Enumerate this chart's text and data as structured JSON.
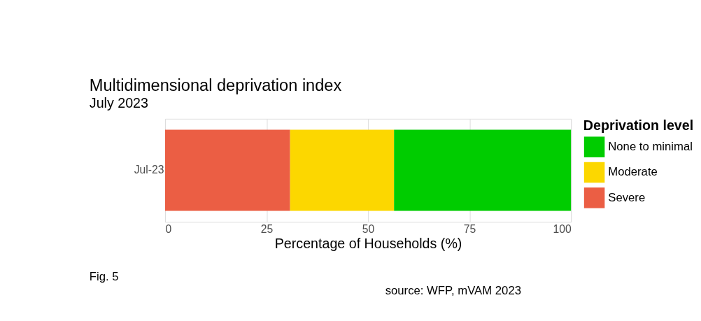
{
  "chart_data": {
    "type": "bar",
    "orientation": "horizontal",
    "stacked": true,
    "title": "Multidimensional deprivation index",
    "subtitle": "July 2023",
    "xlabel": "Percentage of Households (%)",
    "legend_title": "Deprivation level",
    "categories": [
      "Jul-23"
    ],
    "series": [
      {
        "name": "Severe",
        "color": "#eb5e44",
        "values": [
          30.8
        ]
      },
      {
        "name": "Moderate",
        "color": "#fcd700",
        "values": [
          25.6
        ]
      },
      {
        "name": "None to minimal",
        "color": "#00cc00",
        "values": [
          43.6
        ]
      }
    ],
    "xlim": [
      0,
      100
    ],
    "xticks": [
      0,
      25,
      50,
      75,
      100
    ],
    "grid": true,
    "legend": "right",
    "annotations": [
      "Fig. 5",
      "source: WFP, mVAM 2023"
    ]
  }
}
